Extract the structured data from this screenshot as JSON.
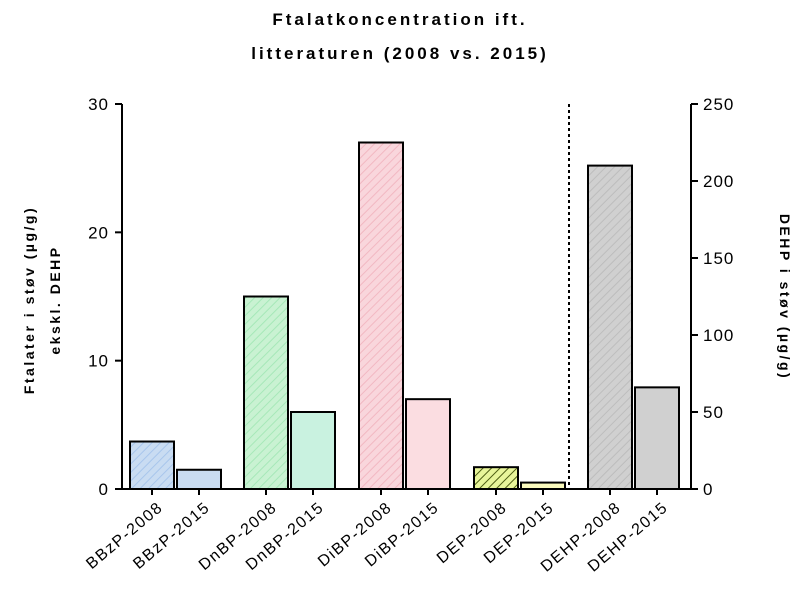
{
  "chart_data": {
    "type": "bar",
    "title_lines": [
      "Ftalatkoncentration ift.",
      "litteraturen  (2008 vs. 2015)"
    ],
    "ylabel_left_lines": [
      "Ftalater i støv (µg/g)",
      "ekskl. DEHP"
    ],
    "ylabel_right": "DEHP i støv (µg/g)",
    "ylim_left": [
      0,
      30
    ],
    "ylim_right": [
      0,
      250
    ],
    "yticks_left": [
      0,
      10,
      20,
      30
    ],
    "yticks_right": [
      0,
      50,
      100,
      150,
      200,
      250
    ],
    "categories": [
      "BBzP-2008",
      "BBzP-2015",
      "DnBP-2008",
      "DnBP-2015",
      "DiBP-2008",
      "DiBP-2015",
      "DEP-2008",
      "DEP-2015",
      "DEHP-2008",
      "DEHP-2015"
    ],
    "values": [
      3.7,
      1.5,
      15,
      6,
      27,
      7,
      1.7,
      0.5,
      210,
      66
    ],
    "axis": [
      "left",
      "left",
      "left",
      "left",
      "left",
      "left",
      "left",
      "left",
      "right",
      "right"
    ],
    "hatched": [
      true,
      false,
      true,
      false,
      true,
      false,
      true,
      false,
      true,
      false
    ],
    "colors": [
      "#c9dcf2",
      "#c9dcf2",
      "#c9f2d2",
      "#c9f2e0",
      "#f9d6dc",
      "#fbdde1",
      "#e8f59a",
      "#fafabd",
      "#d0d0d0",
      "#d0d0d0"
    ],
    "hatch_colors": [
      "#a8c6ec",
      null,
      "#a6e8b8",
      null,
      "#f2b8c2",
      null,
      "#4a5a10",
      null,
      "#bdbdbd",
      null
    ],
    "separator": "dashed line between DEP-2015 and DEHP-2008",
    "grid": false,
    "legend": "none"
  }
}
